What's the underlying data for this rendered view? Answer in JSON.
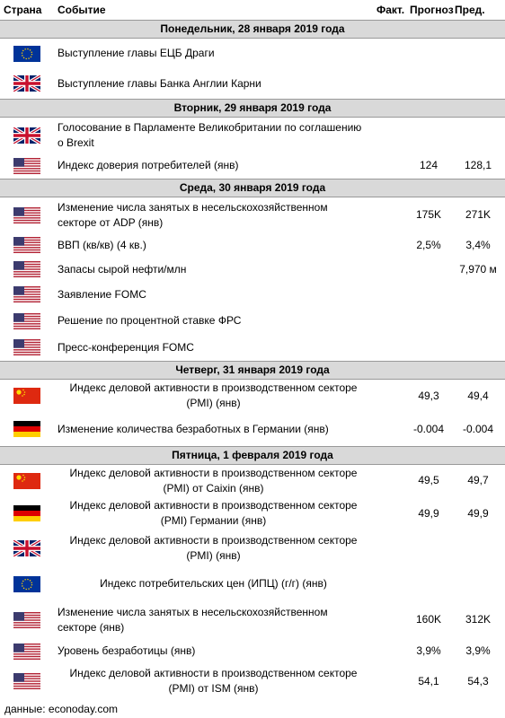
{
  "header": {
    "columns": [
      "Страна",
      "Событие",
      "Факт.",
      "Прогноз",
      "Пред."
    ]
  },
  "days": [
    {
      "title": "Понедельник, 28 января 2019 года",
      "events": [
        {
          "event": "Выступление главы ЕЦБ Драги"
        },
        {
          "event": "Выступление главы Банка Англии Карни"
        }
      ]
    },
    {
      "title": "Вторник, 29 января 2019 года",
      "events": [
        {
          "event": "Голосование в Парламенте Великобритании по соглашению о Brexit"
        },
        {
          "event": "Индекс доверия потребителей (янв)",
          "forecast": "124",
          "previous": "128,1"
        }
      ]
    },
    {
      "title": "Среда, 30 января 2019 года",
      "events": [
        {
          "event": "Изменение числа занятых в несельскохозяйственном секторе от ADP (янв)",
          "forecast": "175K",
          "previous": "271K"
        },
        {
          "event": "ВВП (кв/кв) (4 кв.)",
          "forecast": "2,5%",
          "previous": "3,4%"
        },
        {
          "event": "Запасы сырой нефти/млн",
          "previous": "7,970 м"
        },
        {
          "event": "Заявление FOMC"
        },
        {
          "event": "Решение по процентной ставке ФРС"
        },
        {
          "event": "Пресс-конференция FOMC"
        }
      ]
    },
    {
      "title": "Четверг, 31 января 2019 года",
      "events": [
        {
          "event": "Индекс деловой активности в производственном секторе (PMI) (янв)",
          "forecast": "49,3",
          "previous": "49,4"
        },
        {
          "event": "Изменение количества безработных в Германии (янв)",
          "forecast": "-0.004",
          "previous": "-0.004"
        }
      ]
    },
    {
      "title": "Пятница, 1 февраля 2019 года",
      "events": [
        {
          "event": "Индекс деловой активности в производственном секторе (PMI) от Caixin (янв)",
          "forecast": "49,5",
          "previous": "49,7"
        },
        {
          "event": "Индекс деловой активности в производственном секторе (PMI) Германии (янв)",
          "forecast": "49,9",
          "previous": "49,9"
        },
        {
          "event": "Индекс деловой активности в производственном секторе (PMI) (янв)"
        },
        {
          "event": "Индекс потребительских цен (ИПЦ) (г/г) (янв)"
        },
        {
          "event": "Изменение числа занятых в несельскохозяйственном секторе (янв)",
          "forecast": "160K",
          "previous": "312K"
        },
        {
          "event": "Уровень безработицы (янв)",
          "forecast": "3,9%",
          "previous": "3,9%"
        },
        {
          "event": "Индекс деловой активности в производственном секторе (PMI) от ISM (янв)",
          "forecast": "54,1",
          "previous": "54,3"
        }
      ]
    }
  ],
  "footer": "данные: econoday.com"
}
